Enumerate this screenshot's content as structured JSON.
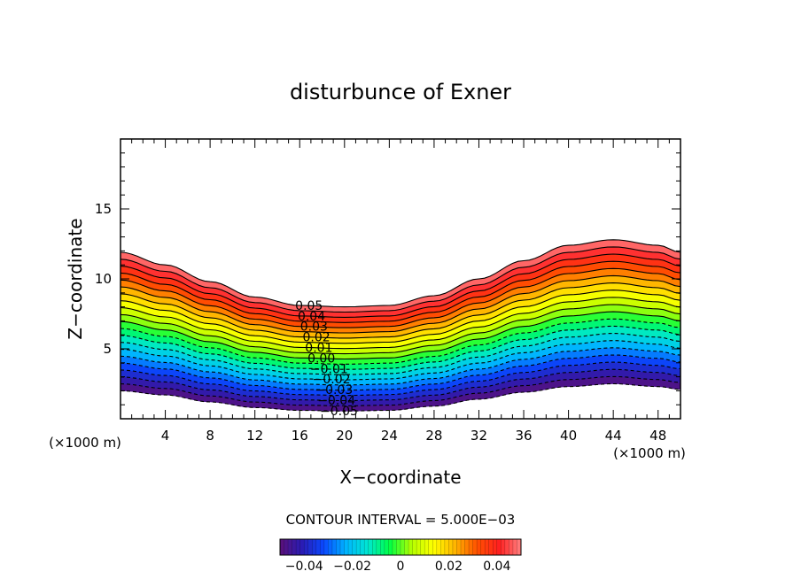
{
  "chart_data": {
    "type": "contour",
    "title": "disturbunce of Exner",
    "xlabel": "X−coordinate",
    "ylabel": "Z−coordinate",
    "x_unit_label": "(×1000 m)",
    "y_unit_label": "(×1000 m)",
    "xlim": [
      0,
      50
    ],
    "ylim": [
      0,
      20
    ],
    "x_ticks": [
      4,
      8,
      12,
      16,
      20,
      24,
      28,
      32,
      36,
      40,
      44,
      48
    ],
    "y_ticks": [
      5,
      10,
      15
    ],
    "contour_interval_text": "CONTOUR INTERVAL = 5.000E−03",
    "contour_interval": 0.005,
    "value_range": [
      -0.05,
      0.05
    ],
    "band_bottom_profile": {
      "x": [
        0,
        4,
        8,
        12,
        16,
        20,
        24,
        28,
        32,
        36,
        40,
        44,
        48,
        50
      ],
      "z": [
        2.0,
        1.7,
        1.2,
        0.8,
        0.6,
        0.55,
        0.6,
        0.9,
        1.4,
        1.9,
        2.3,
        2.5,
        2.3,
        2.1
      ]
    },
    "band_top_profile": {
      "x": [
        0,
        4,
        8,
        12,
        16,
        20,
        24,
        28,
        32,
        36,
        40,
        44,
        48,
        50
      ],
      "z": [
        11.9,
        11.0,
        9.8,
        8.7,
        8.1,
        8.0,
        8.1,
        8.8,
        10.0,
        11.3,
        12.4,
        12.8,
        12.4,
        11.9
      ]
    },
    "contour_labels": [
      "0.05",
      "0.04",
      "0.03",
      "0.02",
      "0.01",
      "0.00",
      "−0.01",
      "−0.02",
      "−0.03",
      "−0.04",
      "−0.05"
    ],
    "colorbar_ticks": [
      "−0.04",
      "−0.02",
      "0",
      "0.02",
      "0.04"
    ],
    "colors": {
      "palette": [
        "#5a1078",
        "#2a1cb4",
        "#0a48ff",
        "#00b4ff",
        "#00e6d2",
        "#00ff46",
        "#b4ff00",
        "#ffff00",
        "#ffb400",
        "#ff5000",
        "#ff2020",
        "#ff8080"
      ],
      "outline": "#000000"
    }
  }
}
